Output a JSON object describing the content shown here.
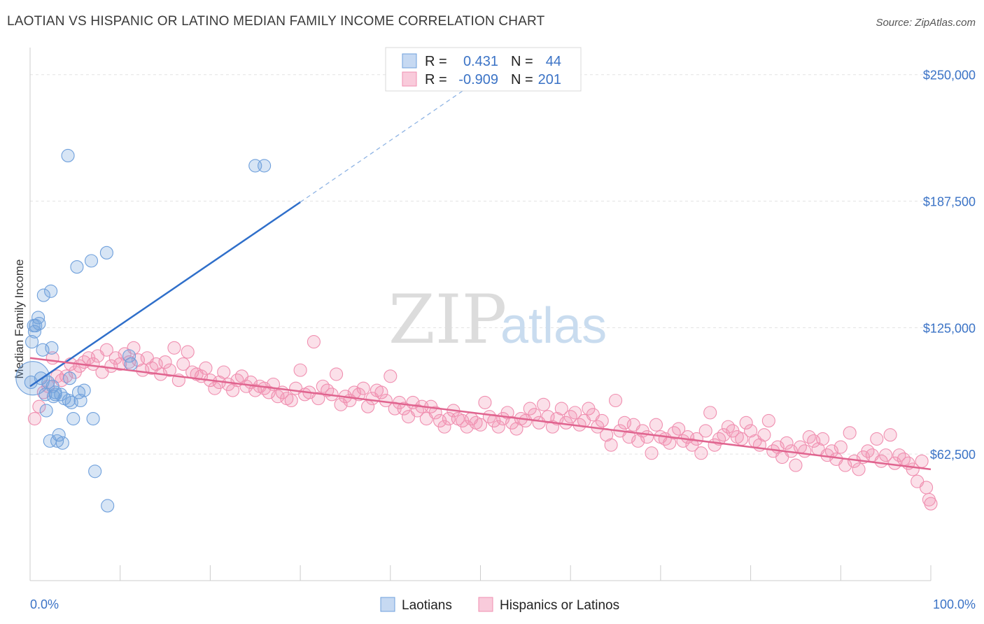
{
  "title": "LAOTIAN VS HISPANIC OR LATINO MEDIAN FAMILY INCOME CORRELATION CHART",
  "source": "Source: ZipAtlas.com",
  "watermark": {
    "zip": "ZIP",
    "atlas": "atlas"
  },
  "colors": {
    "blue": "#6fa0dc",
    "blue_line": "#2f6fca",
    "pink": "#f08fb0",
    "pink_line": "#e0648f",
    "accent_text": "#3b73c6"
  },
  "legend": {
    "rows": [
      {
        "r_label": "R =",
        "r_value": "0.431",
        "n_label": "N =",
        "n_value": "44"
      },
      {
        "r_label": "R =",
        "r_value": "-0.909",
        "n_label": "N =",
        "n_value": "201"
      }
    ]
  },
  "chart_data": {
    "type": "scatter",
    "ylabel": "Median Family Income",
    "y_ticks": [
      "$250,000",
      "$187,500",
      "$125,000",
      "$62,500"
    ],
    "y_tick_values": [
      250000,
      187500,
      125000,
      62500
    ],
    "x_tick_labels": [
      "0.0%",
      "100.0%"
    ],
    "xlim": [
      0,
      100
    ],
    "ylim": [
      0,
      262000
    ],
    "grid": true,
    "series": [
      {
        "name": "Laotians",
        "color": "#6fa0dc",
        "trend": {
          "x": [
            0,
            30
          ],
          "y": [
            96000,
            187000
          ],
          "dashed_to": [
            50,
            248000
          ]
        },
        "points": [
          [
            0.1,
            98000
          ],
          [
            0.2,
            118000
          ],
          [
            0.4,
            126000
          ],
          [
            0.5,
            123000
          ],
          [
            0.6,
            126000
          ],
          [
            0.9,
            130000
          ],
          [
            1.0,
            127000
          ],
          [
            1.2,
            100000
          ],
          [
            1.4,
            114000
          ],
          [
            1.5,
            141000
          ],
          [
            1.7,
            92000
          ],
          [
            1.8,
            84000
          ],
          [
            2.0,
            98000
          ],
          [
            2.2,
            69000
          ],
          [
            2.3,
            143000
          ],
          [
            2.4,
            115000
          ],
          [
            2.5,
            96000
          ],
          [
            2.6,
            91000
          ],
          [
            2.8,
            92000
          ],
          [
            3.0,
            69000
          ],
          [
            3.2,
            72000
          ],
          [
            3.4,
            92000
          ],
          [
            3.6,
            68000
          ],
          [
            3.8,
            90000
          ],
          [
            4.2,
            210000
          ],
          [
            4.3,
            89000
          ],
          [
            4.4,
            100000
          ],
          [
            4.6,
            88000
          ],
          [
            4.8,
            80000
          ],
          [
            5.2,
            155000
          ],
          [
            5.4,
            93000
          ],
          [
            5.6,
            89000
          ],
          [
            6.0,
            94000
          ],
          [
            6.8,
            158000
          ],
          [
            7.0,
            80000
          ],
          [
            7.2,
            54000
          ],
          [
            8.5,
            162000
          ],
          [
            8.6,
            37000
          ],
          [
            11.0,
            111000
          ],
          [
            11.2,
            107000
          ],
          [
            25.0,
            205000
          ],
          [
            26.0,
            205000
          ],
          [
            2.8,
            93000
          ],
          [
            0.3,
            100000
          ]
        ]
      },
      {
        "name": "Hispanics or Latinos",
        "color": "#f08fb0",
        "trend": {
          "x": [
            0,
            100
          ],
          "y": [
            110000,
            55000
          ]
        },
        "points": [
          [
            0.5,
            80000
          ],
          [
            1,
            86000
          ],
          [
            1.5,
            93000
          ],
          [
            2,
            96000
          ],
          [
            2.5,
            110000
          ],
          [
            3,
            101000
          ],
          [
            3.5,
            99000
          ],
          [
            4,
            101000
          ],
          [
            4.5,
            107000
          ],
          [
            5,
            103000
          ],
          [
            5.5,
            106000
          ],
          [
            6,
            108000
          ],
          [
            6.5,
            110000
          ],
          [
            7,
            107000
          ],
          [
            7.5,
            111000
          ],
          [
            8,
            103000
          ],
          [
            8.5,
            114000
          ],
          [
            9,
            106000
          ],
          [
            9.5,
            110000
          ],
          [
            10,
            107000
          ],
          [
            10.5,
            112000
          ],
          [
            11,
            108000
          ],
          [
            11.5,
            115000
          ],
          [
            12,
            109000
          ],
          [
            12.5,
            104000
          ],
          [
            13,
            110000
          ],
          [
            13.5,
            105000
          ],
          [
            14,
            107000
          ],
          [
            14.5,
            102000
          ],
          [
            15,
            108000
          ],
          [
            15.5,
            104000
          ],
          [
            16,
            115000
          ],
          [
            16.5,
            99000
          ],
          [
            17,
            107000
          ],
          [
            17.5,
            113000
          ],
          [
            18,
            103000
          ],
          [
            18.5,
            102000
          ],
          [
            19,
            101000
          ],
          [
            19.5,
            105000
          ],
          [
            20,
            99000
          ],
          [
            20.5,
            95000
          ],
          [
            21,
            98000
          ],
          [
            21.5,
            103000
          ],
          [
            22,
            97000
          ],
          [
            22.5,
            94000
          ],
          [
            23,
            99000
          ],
          [
            23.5,
            101000
          ],
          [
            24,
            96000
          ],
          [
            24.5,
            98000
          ],
          [
            25,
            94000
          ],
          [
            25.5,
            96000
          ],
          [
            26,
            95000
          ],
          [
            26.5,
            93000
          ],
          [
            27,
            97000
          ],
          [
            27.5,
            91000
          ],
          [
            28,
            93000
          ],
          [
            28.5,
            90000
          ],
          [
            29,
            89000
          ],
          [
            29.5,
            95000
          ],
          [
            30,
            104000
          ],
          [
            30.5,
            92000
          ],
          [
            31,
            93000
          ],
          [
            31.5,
            118000
          ],
          [
            32,
            90000
          ],
          [
            32.5,
            96000
          ],
          [
            33,
            94000
          ],
          [
            33.5,
            92000
          ],
          [
            34,
            102000
          ],
          [
            34.5,
            87000
          ],
          [
            35,
            91000
          ],
          [
            35.5,
            89000
          ],
          [
            36,
            93000
          ],
          [
            36.5,
            92000
          ],
          [
            37,
            95000
          ],
          [
            37.5,
            86000
          ],
          [
            38,
            90000
          ],
          [
            38.5,
            94000
          ],
          [
            39,
            93000
          ],
          [
            39.5,
            89000
          ],
          [
            40,
            101000
          ],
          [
            40.5,
            85000
          ],
          [
            41,
            88000
          ],
          [
            41.5,
            85000
          ],
          [
            42,
            81000
          ],
          [
            42.5,
            88000
          ],
          [
            43,
            84000
          ],
          [
            43.5,
            86000
          ],
          [
            44,
            80000
          ],
          [
            44.5,
            86000
          ],
          [
            45,
            83000
          ],
          [
            45.5,
            79000
          ],
          [
            46,
            76000
          ],
          [
            46.5,
            80000
          ],
          [
            47,
            84000
          ],
          [
            47.5,
            80000
          ],
          [
            48,
            79000
          ],
          [
            48.5,
            76000
          ],
          [
            49,
            80000
          ],
          [
            49.5,
            78000
          ],
          [
            50,
            77000
          ],
          [
            50.5,
            88000
          ],
          [
            51,
            81000
          ],
          [
            51.5,
            79000
          ],
          [
            52,
            76000
          ],
          [
            52.5,
            80000
          ],
          [
            53,
            83000
          ],
          [
            53.5,
            78000
          ],
          [
            54,
            75000
          ],
          [
            54.5,
            80000
          ],
          [
            55,
            79000
          ],
          [
            55.5,
            85000
          ],
          [
            56,
            82000
          ],
          [
            56.5,
            78000
          ],
          [
            57,
            87000
          ],
          [
            57.5,
            81000
          ],
          [
            58,
            76000
          ],
          [
            58.5,
            80000
          ],
          [
            59,
            85000
          ],
          [
            59.5,
            78000
          ],
          [
            60,
            81000
          ],
          [
            60.5,
            83000
          ],
          [
            61,
            77000
          ],
          [
            61.5,
            79000
          ],
          [
            62,
            85000
          ],
          [
            62.5,
            82000
          ],
          [
            63,
            76000
          ],
          [
            63.5,
            79000
          ],
          [
            64,
            72000
          ],
          [
            64.5,
            67000
          ],
          [
            65,
            89000
          ],
          [
            65.5,
            74000
          ],
          [
            66,
            78000
          ],
          [
            66.5,
            71000
          ],
          [
            67,
            77000
          ],
          [
            67.5,
            69000
          ],
          [
            68,
            74000
          ],
          [
            68.5,
            71000
          ],
          [
            69,
            63000
          ],
          [
            69.5,
            77000
          ],
          [
            70,
            71000
          ],
          [
            70.5,
            70000
          ],
          [
            71,
            68000
          ],
          [
            71.5,
            73000
          ],
          [
            72,
            75000
          ],
          [
            72.5,
            69000
          ],
          [
            73,
            71000
          ],
          [
            73.5,
            67000
          ],
          [
            74,
            70000
          ],
          [
            74.5,
            63000
          ],
          [
            75,
            74000
          ],
          [
            75.5,
            83000
          ],
          [
            76,
            67000
          ],
          [
            76.5,
            70000
          ],
          [
            77,
            72000
          ],
          [
            77.5,
            76000
          ],
          [
            78,
            74000
          ],
          [
            78.5,
            71000
          ],
          [
            79,
            70000
          ],
          [
            79.5,
            78000
          ],
          [
            80,
            74000
          ],
          [
            80.5,
            69000
          ],
          [
            81,
            67000
          ],
          [
            81.5,
            72000
          ],
          [
            82,
            79000
          ],
          [
            82.5,
            64000
          ],
          [
            83,
            66000
          ],
          [
            83.5,
            61000
          ],
          [
            84,
            68000
          ],
          [
            84.5,
            64000
          ],
          [
            85,
            57000
          ],
          [
            85.5,
            66000
          ],
          [
            86,
            64000
          ],
          [
            86.5,
            71000
          ],
          [
            87,
            69000
          ],
          [
            87.5,
            65000
          ],
          [
            88,
            70000
          ],
          [
            88.5,
            62000
          ],
          [
            89,
            64000
          ],
          [
            89.5,
            60000
          ],
          [
            90,
            66000
          ],
          [
            90.5,
            57000
          ],
          [
            91,
            73000
          ],
          [
            91.5,
            59000
          ],
          [
            92,
            55000
          ],
          [
            92.5,
            61000
          ],
          [
            93,
            64000
          ],
          [
            93.5,
            62000
          ],
          [
            94,
            70000
          ],
          [
            94.5,
            59000
          ],
          [
            95,
            62000
          ],
          [
            95.5,
            72000
          ],
          [
            96,
            58000
          ],
          [
            96.5,
            62000
          ],
          [
            97,
            60000
          ],
          [
            97.5,
            58000
          ],
          [
            98,
            55000
          ],
          [
            98.5,
            49000
          ],
          [
            99,
            59000
          ],
          [
            99.5,
            46000
          ],
          [
            99.8,
            40000
          ],
          [
            100,
            38000
          ]
        ]
      }
    ]
  }
}
